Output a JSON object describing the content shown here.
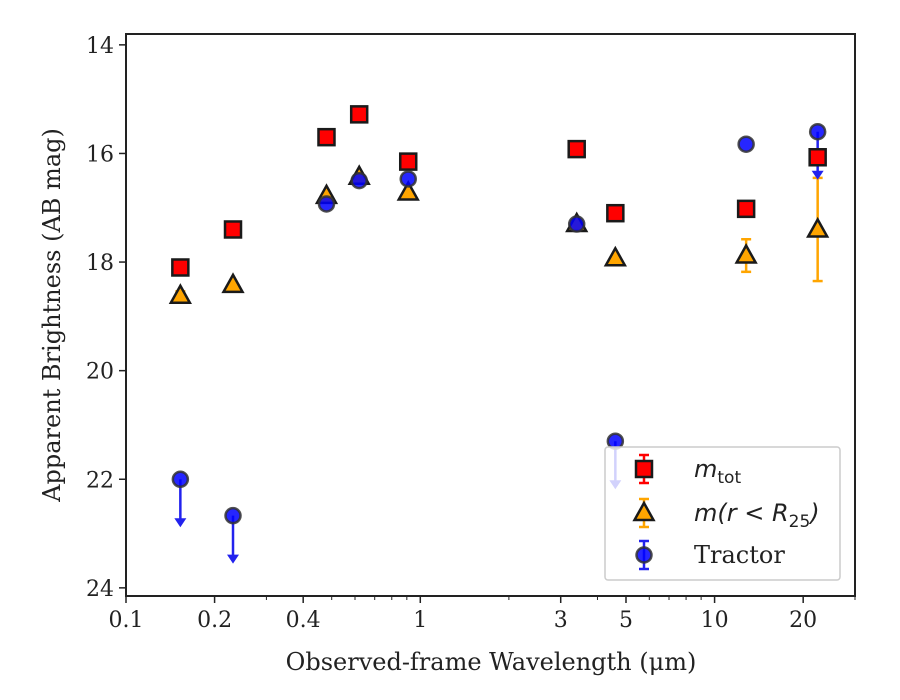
{
  "chart_data": {
    "type": "scatter",
    "xlabel": "Observed-frame Wavelength (μm)",
    "ylabel": "Apparent Brightness (AB mag)",
    "xscale": "log",
    "xlim": [
      0.1,
      30
    ],
    "ylim": [
      24.15,
      13.8
    ],
    "y_inverted": true,
    "xticks": [
      {
        "value": 0.1,
        "label": "0.1"
      },
      {
        "value": 0.2,
        "label": "0.2"
      },
      {
        "value": 0.4,
        "label": "0.4"
      },
      {
        "value": 1,
        "label": "1"
      },
      {
        "value": 3,
        "label": "3"
      },
      {
        "value": 5,
        "label": "5"
      },
      {
        "value": 10,
        "label": "10"
      },
      {
        "value": 20,
        "label": "20"
      }
    ],
    "yticks": [
      {
        "value": 14,
        "label": "14"
      },
      {
        "value": 16,
        "label": "16"
      },
      {
        "value": 18,
        "label": "18"
      },
      {
        "value": 20,
        "label": "20"
      },
      {
        "value": 22,
        "label": "22"
      },
      {
        "value": 24,
        "label": "24"
      }
    ],
    "grid": false,
    "legend_position": "lower right",
    "series": [
      {
        "name": "m_tot",
        "label_main": "m",
        "label_sub": "tot",
        "marker": "square",
        "color": "#ff0000",
        "edge": "#1a1a1a",
        "points": [
          {
            "x": 0.153,
            "y": 18.1
          },
          {
            "x": 0.231,
            "y": 17.4
          },
          {
            "x": 0.48,
            "y": 15.7
          },
          {
            "x": 0.62,
            "y": 15.28
          },
          {
            "x": 0.91,
            "y": 16.15
          },
          {
            "x": 3.4,
            "y": 15.92
          },
          {
            "x": 4.6,
            "y": 17.1
          },
          {
            "x": 12.8,
            "y": 17.02
          },
          {
            "x": 22.4,
            "y": 16.07
          }
        ]
      },
      {
        "name": "m(r < R25)",
        "label_main": "m(r < R",
        "label_sub": "25",
        "label_end": ")",
        "marker": "triangle",
        "color": "#ffa500",
        "edge": "#1a1a1a",
        "points": [
          {
            "x": 0.153,
            "y": 18.62,
            "err": 0.08
          },
          {
            "x": 0.231,
            "y": 18.42
          },
          {
            "x": 0.48,
            "y": 16.78
          },
          {
            "x": 0.62,
            "y": 16.43
          },
          {
            "x": 0.91,
            "y": 16.72
          },
          {
            "x": 3.4,
            "y": 17.3
          },
          {
            "x": 4.6,
            "y": 17.93
          },
          {
            "x": 12.8,
            "y": 17.88,
            "err": 0.3
          },
          {
            "x": 22.4,
            "y": 17.4,
            "err": 0.95
          }
        ]
      },
      {
        "name": "Tractor",
        "marker": "circle",
        "color": "#0000ff",
        "edge": "#333333",
        "points": [
          {
            "x": 0.153,
            "y": 22.0,
            "upper_limit": true
          },
          {
            "x": 0.231,
            "y": 22.67,
            "upper_limit": true
          },
          {
            "x": 0.48,
            "y": 16.93
          },
          {
            "x": 0.62,
            "y": 16.5
          },
          {
            "x": 0.91,
            "y": 16.47
          },
          {
            "x": 3.4,
            "y": 17.3
          },
          {
            "x": 4.6,
            "y": 21.3,
            "upper_limit": true
          },
          {
            "x": 12.8,
            "y": 15.83
          },
          {
            "x": 22.4,
            "y": 15.6,
            "upper_limit": true
          }
        ]
      }
    ]
  }
}
